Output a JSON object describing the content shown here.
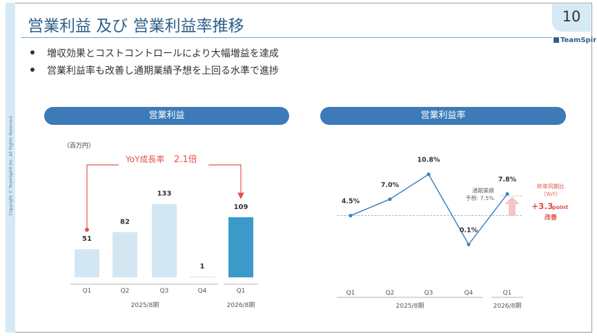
{
  "page": {
    "title": "営業利益 及び 営業利益率推移",
    "page_number": "10",
    "brand": "TeamSpirit",
    "copyright": "Copyright © TeamSpirit Inc. All Rights Reserved.",
    "bullets": [
      "増収効果とコストコントロールにより大幅増益を達成",
      "営業利益率も改善し通期業績予想を上回る水準で進捗"
    ]
  },
  "colors": {
    "title": "#2e5f8a",
    "pill": "#3d7ab8",
    "bar_past": "#d3e7f3",
    "bar_current": "#3b9ac9",
    "line": "#3d84c0",
    "accent_red": "#e0534f",
    "arrow_pink": "#f4c6c6"
  },
  "chart_data": [
    {
      "type": "bar",
      "title": "営業利益",
      "unit_label": "（百万円）",
      "categories": [
        "Q1",
        "Q2",
        "Q3",
        "Q4",
        "Q1"
      ],
      "values": [
        51,
        82,
        133,
        1,
        109
      ],
      "period_labels": [
        "2025/8期",
        "2026/8期"
      ],
      "period_groups": [
        [
          0,
          3
        ],
        [
          4,
          4
        ]
      ],
      "highlight_index": 4,
      "ylim": [
        0,
        150
      ],
      "annotation": {
        "text": "YoY成長率",
        "value": "2.1倍",
        "from_index": 0,
        "to_index": 4
      }
    },
    {
      "type": "line",
      "title": "営業利益率",
      "categories": [
        "Q1",
        "Q2",
        "Q3",
        "Q4",
        "Q1"
      ],
      "values": [
        4.5,
        7.0,
        10.8,
        0.1,
        7.8
      ],
      "value_labels": [
        "4.5%",
        "7.0%",
        "10.8%",
        "0.1%",
        "7.8%"
      ],
      "period_labels": [
        "2025/8期",
        "2026/8期"
      ],
      "period_groups": [
        [
          0,
          3
        ],
        [
          4,
          4
        ]
      ],
      "ylim": [
        -2,
        13
      ],
      "reference_lines": [
        {
          "value": 7.5,
          "label_lines": [
            "通期業績",
            "予想: 7.5%"
          ]
        },
        {
          "value": 4.5
        }
      ],
      "yoy_label": [
        "昨年同期比",
        "（YoY）"
      ],
      "yoy_value": "+3.3",
      "yoy_unit": "point",
      "yoy_text": "改善"
    }
  ]
}
